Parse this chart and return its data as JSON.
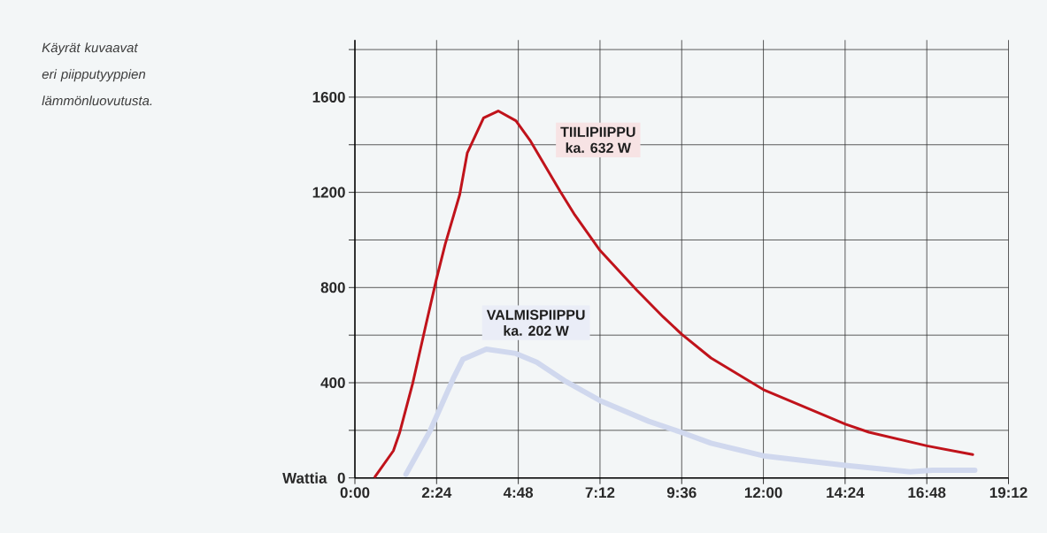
{
  "chart_data": {
    "type": "line",
    "ylabel": "Wattia",
    "annotations": [
      "Käyrät kuvaavat eri piipputyyppien lämmönluovutusta.",
      "ka. 632 W",
      "ka. 202 W"
    ],
    "series": [
      {
        "name": "TIILIPIIPPU",
        "color": "#c0131b",
        "x": [
          0.59,
          1.13,
          1.31,
          1.7,
          2.09,
          2.39,
          2.65,
          3.08,
          3.3,
          3.78,
          4.21,
          4.73,
          5.16,
          6.03,
          6.46,
          7.2,
          8.28,
          9.06,
          9.6,
          10.46,
          12.0,
          14.41,
          15.1,
          16.8,
          18.15
        ],
        "values": [
          5,
          114,
          188,
          399,
          646,
          832,
          981,
          1191,
          1365,
          1513,
          1542,
          1501,
          1415,
          1204,
          1105,
          956,
          789,
          676,
          604,
          504,
          371,
          226,
          192,
          135,
          98
        ]
      },
      {
        "name": "VALMISPIIPPU",
        "color": "#d0d8ee",
        "x": [
          1.5,
          2.22,
          2.91,
          3.17,
          3.86,
          4.73,
          5.34,
          6.2,
          7.2,
          8.63,
          9.6,
          10.46,
          12.0,
          14.41,
          16.31,
          16.96,
          18.21
        ],
        "values": [
          15,
          201,
          424,
          498,
          541,
          523,
          486,
          405,
          325,
          238,
          191,
          146,
          93,
          53,
          26,
          32,
          32
        ]
      }
    ],
    "xlim": [
      0,
      19.2
    ],
    "xticks": [
      {
        "value": 0,
        "label": "0:00"
      },
      {
        "value": 2.4,
        "label": "2:24"
      },
      {
        "value": 4.8,
        "label": "4:48"
      },
      {
        "value": 7.2,
        "label": "7:12"
      },
      {
        "value": 9.6,
        "label": "9:36"
      },
      {
        "value": 12,
        "label": "12:00"
      },
      {
        "value": 14.4,
        "label": "14:24"
      },
      {
        "value": 16.8,
        "label": "16:48"
      },
      {
        "value": 19.2,
        "label": "19:12"
      }
    ],
    "ylim": [
      0,
      1840
    ],
    "yticks": [
      0,
      {
        "value": 200,
        "label": null
      },
      400,
      {
        "value": 600,
        "label": null
      },
      800,
      {
        "value": 1000,
        "label": null
      },
      1200,
      {
        "value": 1400,
        "label": null
      },
      1600,
      {
        "value": 1800,
        "label": null
      }
    ],
    "grid": true
  }
}
